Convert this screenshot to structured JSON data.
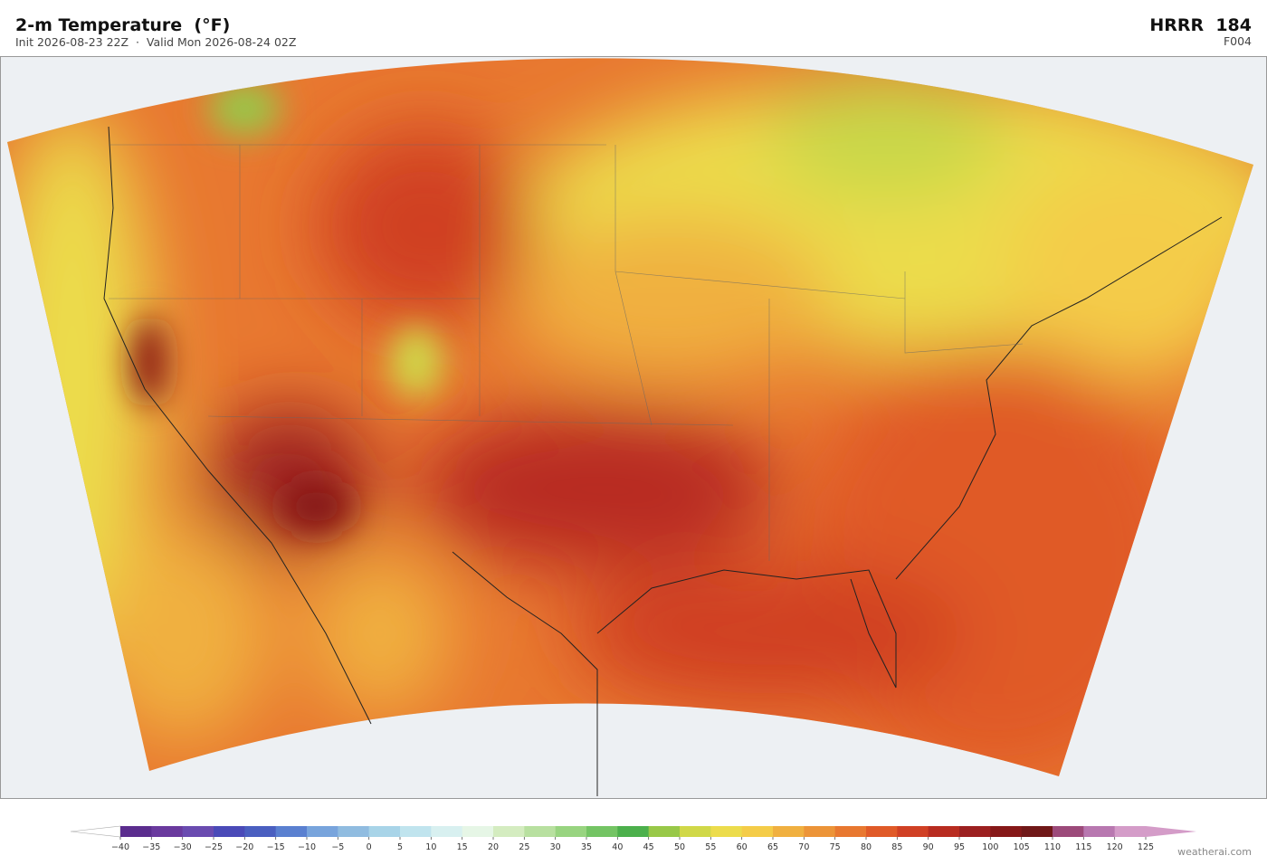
{
  "header": {
    "title": "2-m Temperature  (°F)",
    "subtitle": "Init 2026-08-23 22Z  ·  Valid Mon 2026-08-24 02Z",
    "model": "HRRR  184",
    "forecast_hour": "F004"
  },
  "colorbar": {
    "ticks": [
      {
        "value": -40,
        "label": "−40"
      },
      {
        "value": -35,
        "label": "−35"
      },
      {
        "value": -30,
        "label": "−30"
      },
      {
        "value": -25,
        "label": "−25"
      },
      {
        "value": -20,
        "label": "−20"
      },
      {
        "value": -15,
        "label": "−15"
      },
      {
        "value": -10,
        "label": "−10"
      },
      {
        "value": -5,
        "label": "−5"
      },
      0,
      5,
      10,
      15,
      20,
      25,
      30,
      35,
      40,
      45,
      50,
      55,
      60,
      65,
      70,
      75,
      80,
      85,
      90,
      95,
      100,
      105,
      110,
      115,
      120,
      125
    ],
    "colors": [
      "#5b2d8e",
      "#6a3a9e",
      "#6a4bb0",
      "#4a4ab8",
      "#4a5fc0",
      "#5a80d0",
      "#78a4dc",
      "#90bce0",
      "#a8d4e8",
      "#c0e4ee",
      "#d8f0f0",
      "#e6f6e6",
      "#d4ecc0",
      "#b8e0a0",
      "#98d480",
      "#74c464",
      "#4cb04c",
      "#98c848",
      "#d0d848",
      "#ecdc4c",
      "#f4cc48",
      "#f0b040",
      "#ec9438",
      "#e87830",
      "#e05a28",
      "#d04024",
      "#b82c20",
      "#9c2020",
      "#861818",
      "#701818",
      "#9c4a7a",
      "#b878b0",
      "#d49cc8"
    ],
    "under_color": "#ffffff",
    "over_color": "#d49cc8"
  },
  "credit": "weatherai.com"
}
